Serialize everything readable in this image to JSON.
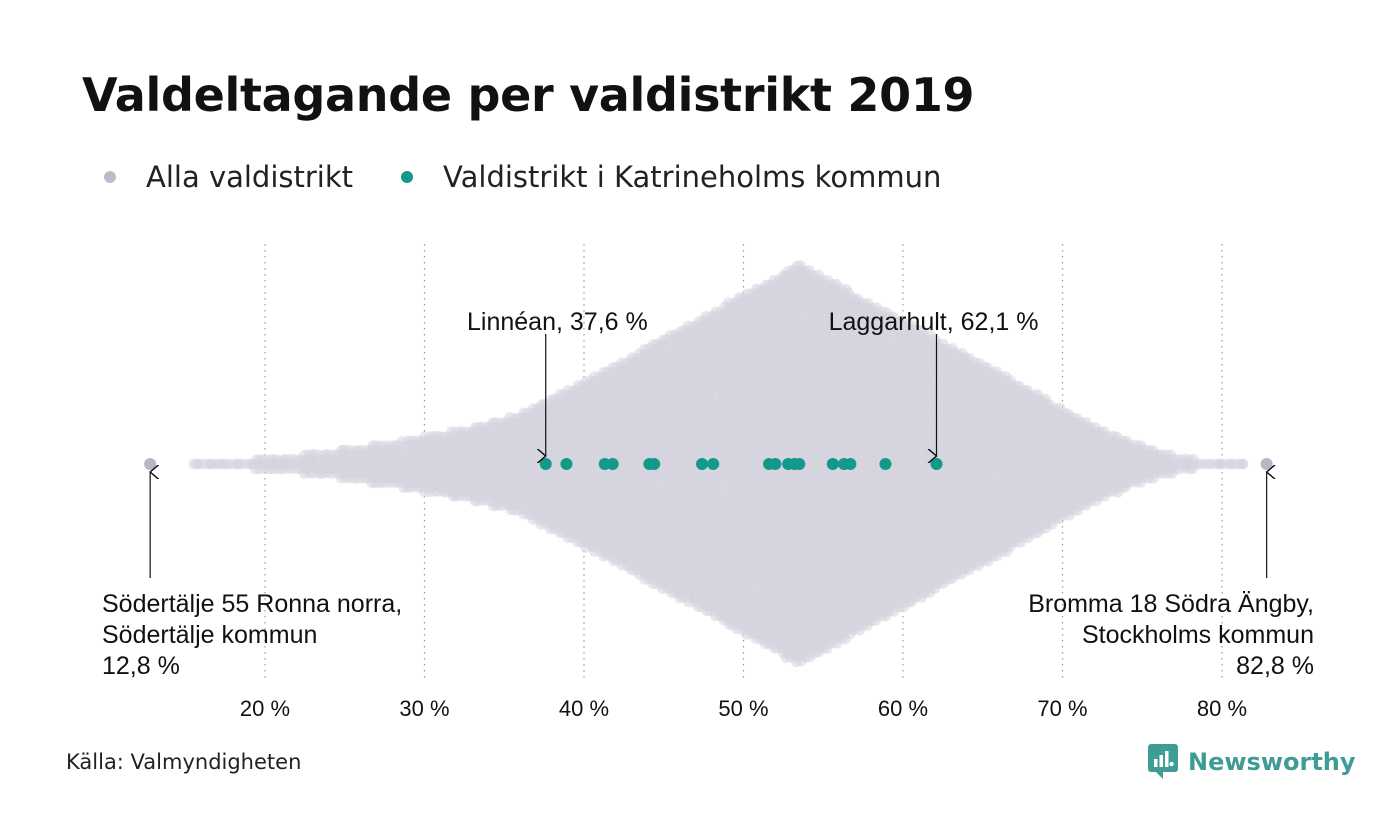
{
  "title": "Valdeltagande per valdistrikt 2019",
  "legend": [
    {
      "label": "Alla valdistrikt",
      "color": "#c2c0cd"
    },
    {
      "label": "Valdistrikt i Katrineholms kommun",
      "color": "#12998a"
    }
  ],
  "source": "Källa: Valmyndigheten",
  "brand": {
    "name": "Newsworthy",
    "icon": "newsworthy-logo-icon",
    "color": "#3f9c94"
  },
  "colors": {
    "all": "#d6d4de",
    "katrineholm": "#12998a",
    "extreme": "#b9b7c6",
    "grid": "#999999"
  },
  "chart_data": {
    "type": "scatter",
    "subtype": "beeswarm",
    "xlabel": "",
    "ylabel": "",
    "xlim": [
      10,
      85
    ],
    "x_ticks": [
      20,
      30,
      40,
      50,
      60,
      70,
      80
    ],
    "x_tick_labels": [
      "20 %",
      "30 %",
      "40 %",
      "50 %",
      "60 %",
      "70 %",
      "80 %"
    ],
    "grid": "vertical-dotted",
    "series": [
      {
        "name": "Alla valdistrikt",
        "distribution": {
          "min": 12.8,
          "max": 82.8,
          "peak": 53.5,
          "density_peak": 1.0
        }
      },
      {
        "name": "Valdistrikt i Katrineholms kommun",
        "values": [
          37.6,
          38.9,
          41.3,
          41.8,
          44.1,
          44.4,
          47.4,
          48.1,
          51.6,
          52.0,
          52.8,
          53.2,
          53.5,
          55.6,
          56.3,
          56.7,
          58.9,
          62.1
        ]
      }
    ],
    "annotations": [
      {
        "text": [
          "Linnéan, 37,6 %"
        ],
        "x": 37.6,
        "align": "end",
        "position": "above"
      },
      {
        "text": [
          "Laggarhult, 62,1 %"
        ],
        "x": 62.1,
        "align": "end",
        "position": "above"
      },
      {
        "text": [
          "Södertälje 55 Ronna norra,",
          "Södertälje kommun",
          "12,8 %"
        ],
        "x": 12.8,
        "align": "start",
        "position": "below"
      },
      {
        "text": [
          "Bromma 18 Södra Ängby,",
          "Stockholms kommun",
          "82,8 %"
        ],
        "x": 82.8,
        "align": "end",
        "position": "below"
      }
    ]
  }
}
